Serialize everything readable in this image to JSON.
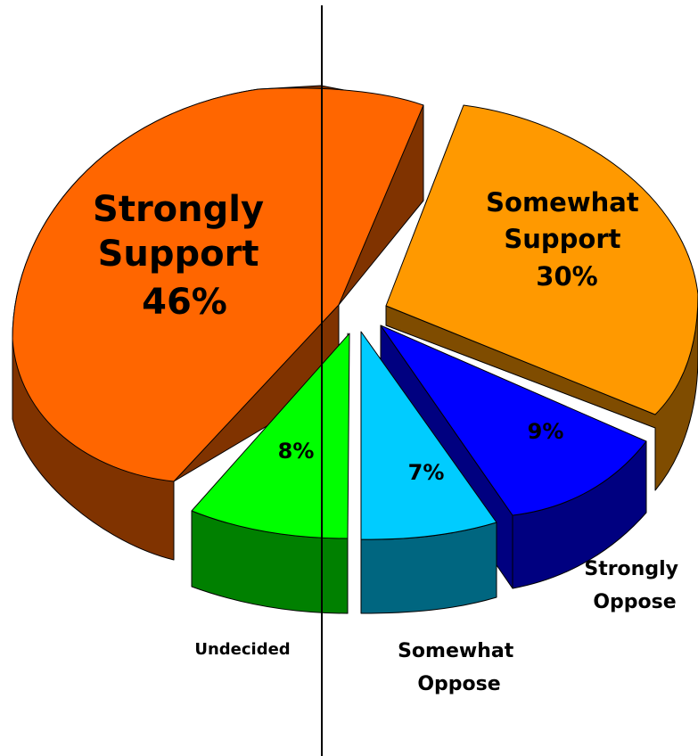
{
  "chart_data": {
    "type": "pie",
    "three_d": true,
    "exploded": true,
    "slices": [
      {
        "name": "Strongly Support",
        "value": 46,
        "label_lines": [
          "Strongly",
          "Support",
          "46%"
        ],
        "top_color": "#FF6600",
        "side_color": "#803300"
      },
      {
        "name": "Somewhat Support",
        "value": 30,
        "label_lines": [
          "Somewhat",
          "Support",
          "30%"
        ],
        "top_color": "#FF9900",
        "side_color": "#7F4C00"
      },
      {
        "name": "Strongly Oppose",
        "value": 9,
        "pct_label": "9%",
        "outer_label": [
          "Strongly",
          "Oppose"
        ],
        "top_color": "#0000FF",
        "side_color": "#000080"
      },
      {
        "name": "Somewhat Oppose",
        "value": 7,
        "pct_label": "7%",
        "outer_label": [
          "Somewhat",
          "Oppose"
        ],
        "top_color": "#00CCFF",
        "side_color": "#006680"
      },
      {
        "name": "Undecided",
        "value": 8,
        "pct_label": "8%",
        "outer_label": [
          "Undecided"
        ],
        "top_color": "#00FF00",
        "side_color": "#008000"
      }
    ],
    "divider_line": true
  }
}
